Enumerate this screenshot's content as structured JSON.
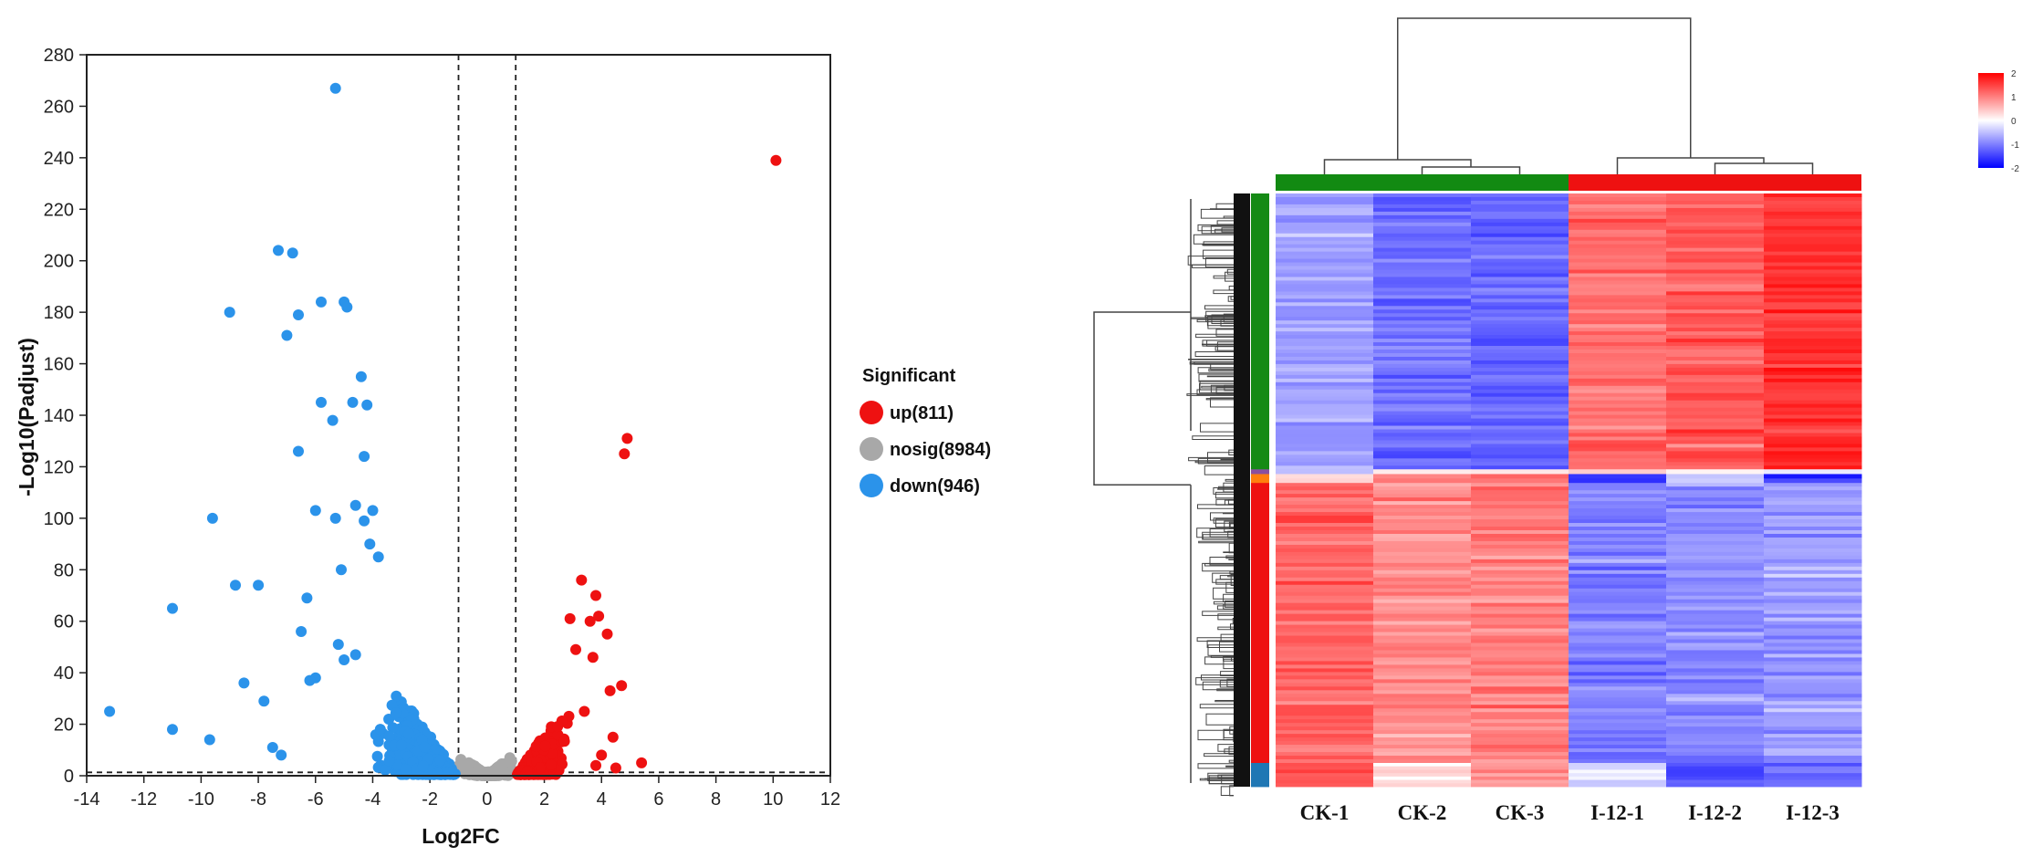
{
  "chart_data": [
    {
      "type": "scatter",
      "title": "",
      "xlabel": "Log2FC",
      "ylabel": "-Log10(Padjust)",
      "xlim": [
        -14,
        12
      ],
      "ylim": [
        0,
        280
      ],
      "xticks": [
        -14,
        -12,
        -10,
        -8,
        -6,
        -4,
        -2,
        0,
        2,
        4,
        6,
        8,
        10,
        12
      ],
      "yticks": [
        0,
        20,
        40,
        60,
        80,
        100,
        120,
        140,
        160,
        180,
        200,
        220,
        240,
        260,
        280
      ],
      "fc_thresholds": [
        -1,
        1
      ],
      "padj_threshold": 1.3,
      "legend": {
        "title": "Significant",
        "position": "right",
        "entries": [
          {
            "label": "up(811)",
            "color": "#ee1111",
            "count": 811
          },
          {
            "label": "nosig(8984)",
            "color": "#a8a8a8",
            "count": 8984
          },
          {
            "label": "down(946)",
            "color": "#2b93ea",
            "count": 946
          }
        ]
      },
      "series": [
        {
          "name": "down",
          "color": "#2b93ea",
          "points": [
            [
              -5.3,
              267
            ],
            [
              -7.3,
              204
            ],
            [
              -6.8,
              203
            ],
            [
              -9.0,
              180
            ],
            [
              -6.6,
              179
            ],
            [
              -5.8,
              184
            ],
            [
              -5.0,
              184
            ],
            [
              -4.9,
              182
            ],
            [
              -7.0,
              171
            ],
            [
              -4.4,
              155
            ],
            [
              -5.8,
              145
            ],
            [
              -4.7,
              145
            ],
            [
              -4.2,
              144
            ],
            [
              -5.4,
              138
            ],
            [
              -6.6,
              126
            ],
            [
              -4.3,
              124
            ],
            [
              -9.6,
              100
            ],
            [
              -6.0,
              103
            ],
            [
              -5.3,
              100
            ],
            [
              -4.6,
              105
            ],
            [
              -4.0,
              103
            ],
            [
              -4.3,
              99
            ],
            [
              -4.1,
              90
            ],
            [
              -3.8,
              85
            ],
            [
              -5.1,
              80
            ],
            [
              -8.0,
              74
            ],
            [
              -8.8,
              74
            ],
            [
              -11.0,
              65
            ],
            [
              -6.3,
              69
            ],
            [
              -6.5,
              56
            ],
            [
              -8.5,
              36
            ],
            [
              -7.8,
              29
            ],
            [
              -13.2,
              25
            ],
            [
              -11.0,
              18
            ],
            [
              -9.7,
              14
            ],
            [
              -7.5,
              11
            ],
            [
              -7.2,
              8
            ],
            [
              -6.0,
              38
            ],
            [
              -6.2,
              37
            ],
            [
              -5.2,
              51
            ],
            [
              -5.0,
              45
            ],
            [
              -4.6,
              47
            ]
          ]
        },
        {
          "name": "up",
          "color": "#ee1111",
          "points": [
            [
              10.1,
              239
            ],
            [
              4.9,
              131
            ],
            [
              4.8,
              125
            ],
            [
              3.3,
              76
            ],
            [
              3.8,
              70
            ],
            [
              2.9,
              61
            ],
            [
              3.6,
              60
            ],
            [
              3.9,
              62
            ],
            [
              4.2,
              55
            ],
            [
              3.1,
              49
            ],
            [
              3.7,
              46
            ],
            [
              4.7,
              35
            ],
            [
              4.3,
              33
            ],
            [
              3.4,
              25
            ],
            [
              4.4,
              15
            ],
            [
              5.4,
              5
            ],
            [
              4.0,
              8
            ],
            [
              3.8,
              4
            ],
            [
              4.5,
              3
            ]
          ]
        },
        {
          "name": "nosig",
          "color": "#a8a8a8",
          "points": []
        }
      ]
    },
    {
      "type": "heatmap",
      "columns": [
        "CK-1",
        "CK-2",
        "CK-3",
        "I-12-1",
        "I-12-2",
        "I-12-3"
      ],
      "column_groups": [
        {
          "name": "CK",
          "color": "#128a12",
          "columns": [
            "CK-1",
            "CK-2",
            "CK-3"
          ]
        },
        {
          "name": "I-12",
          "color": "#ee1111",
          "columns": [
            "I-12-1",
            "I-12-2",
            "I-12-3"
          ]
        }
      ],
      "row_clusters": [
        {
          "color": "#158a15",
          "fraction": 0.465
        },
        {
          "color": "#8a4fa0",
          "fraction": 0.008
        },
        {
          "color": "#ff7f0e",
          "fraction": 0.015
        },
        {
          "color": "#ee1111",
          "fraction": 0.472
        },
        {
          "color": "#1f77b4",
          "fraction": 0.04
        }
      ],
      "block_means": [
        [
          -0.7,
          -1.1,
          -1.2,
          1.1,
          1.3,
          1.6
        ],
        [
          -0.2,
          0.2,
          0.1,
          0.3,
          -0.2,
          -0.3
        ],
        [
          0.3,
          1.1,
          1.2,
          -1.5,
          -0.3,
          -1.6
        ],
        [
          1.2,
          0.9,
          1.0,
          -1.0,
          -0.9,
          -0.8
        ],
        [
          1.3,
          0.2,
          0.9,
          -0.3,
          -1.4,
          -1.2
        ]
      ],
      "colorbar": {
        "range": [
          -2,
          2
        ],
        "ticks": [
          "2",
          "1",
          "0",
          "-1",
          "-2"
        ],
        "colors": [
          "#ff0000",
          "#ffffff",
          "#0000ff"
        ]
      }
    }
  ]
}
